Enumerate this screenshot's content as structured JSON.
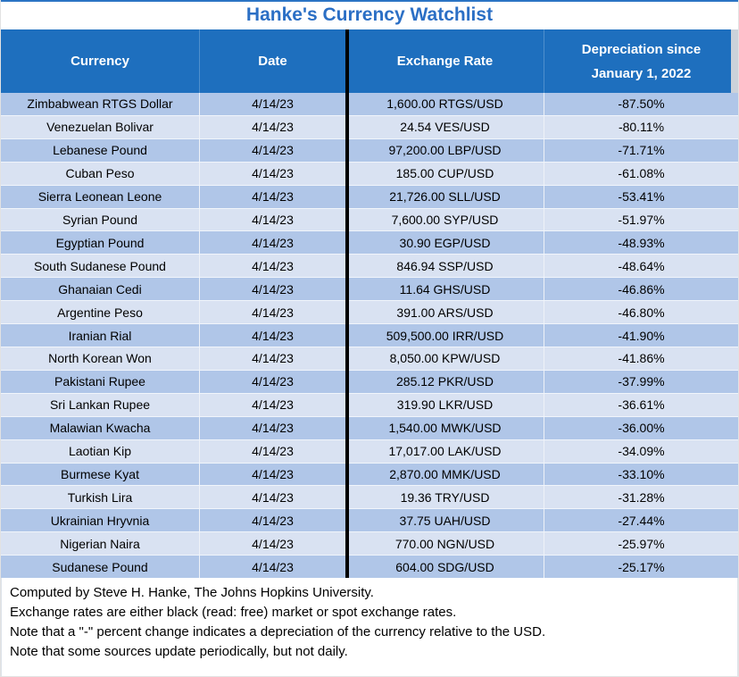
{
  "colors": {
    "header_bg": "#1e6fbe",
    "title_text": "#2b6fc5",
    "row_dark": "#b0c6e8",
    "row_light": "#d9e2f2",
    "divider": "#000000"
  },
  "chart_data": {
    "type": "table",
    "title": "Hanke's Currency Watchlist",
    "columns": [
      "Currency",
      "Date",
      "Exchange Rate",
      "Depreciation since January 1, 2022"
    ],
    "rows": [
      [
        "Zimbabwean RTGS Dollar",
        "4/14/23",
        "1,600.00 RTGS/USD",
        "-87.50%"
      ],
      [
        "Venezuelan Bolivar",
        "4/14/23",
        "24.54 VES/USD",
        "-80.11%"
      ],
      [
        "Lebanese Pound",
        "4/14/23",
        "97,200.00 LBP/USD",
        "-71.71%"
      ],
      [
        "Cuban Peso",
        "4/14/23",
        "185.00 CUP/USD",
        "-61.08%"
      ],
      [
        "Sierra Leonean Leone",
        "4/14/23",
        "21,726.00 SLL/USD",
        "-53.41%"
      ],
      [
        "Syrian Pound",
        "4/14/23",
        "7,600.00 SYP/USD",
        "-51.97%"
      ],
      [
        "Egyptian Pound",
        "4/14/23",
        "30.90 EGP/USD",
        "-48.93%"
      ],
      [
        "South Sudanese Pound",
        "4/14/23",
        "846.94 SSP/USD",
        "-48.64%"
      ],
      [
        "Ghanaian Cedi",
        "4/14/23",
        "11.64 GHS/USD",
        "-46.86%"
      ],
      [
        "Argentine Peso",
        "4/14/23",
        "391.00 ARS/USD",
        "-46.80%"
      ],
      [
        "Iranian Rial",
        "4/14/23",
        "509,500.00 IRR/USD",
        "-41.90%"
      ],
      [
        "North Korean Won",
        "4/14/23",
        "8,050.00 KPW/USD",
        "-41.86%"
      ],
      [
        "Pakistani Rupee",
        "4/14/23",
        "285.12 PKR/USD",
        "-37.99%"
      ],
      [
        "Sri Lankan Rupee",
        "4/14/23",
        "319.90 LKR/USD",
        "-36.61%"
      ],
      [
        "Malawian Kwacha",
        "4/14/23",
        "1,540.00 MWK/USD",
        "-36.00%"
      ],
      [
        "Laotian Kip",
        "4/14/23",
        "17,017.00 LAK/USD",
        "-34.09%"
      ],
      [
        "Burmese Kyat",
        "4/14/23",
        "2,870.00 MMK/USD",
        "-33.10%"
      ],
      [
        "Turkish Lira",
        "4/14/23",
        "19.36 TRY/USD",
        "-31.28%"
      ],
      [
        "Ukrainian Hryvnia",
        "4/14/23",
        "37.75 UAH/USD",
        "-27.44%"
      ],
      [
        "Nigerian Naira",
        "4/14/23",
        "770.00 NGN/USD",
        "-25.97%"
      ],
      [
        "Sudanese Pound",
        "4/14/23",
        "604.00 SDG/USD",
        "-25.17%"
      ]
    ]
  },
  "footnotes": [
    "Computed by Steve H. Hanke, The Johns Hopkins University.",
    "Exchange rates are either black (read: free) market or spot exchange rates.",
    "Note that a \"-\" percent change indicates a depreciation of the currency relative to the USD.",
    "Note that some sources update periodically, but not daily."
  ]
}
